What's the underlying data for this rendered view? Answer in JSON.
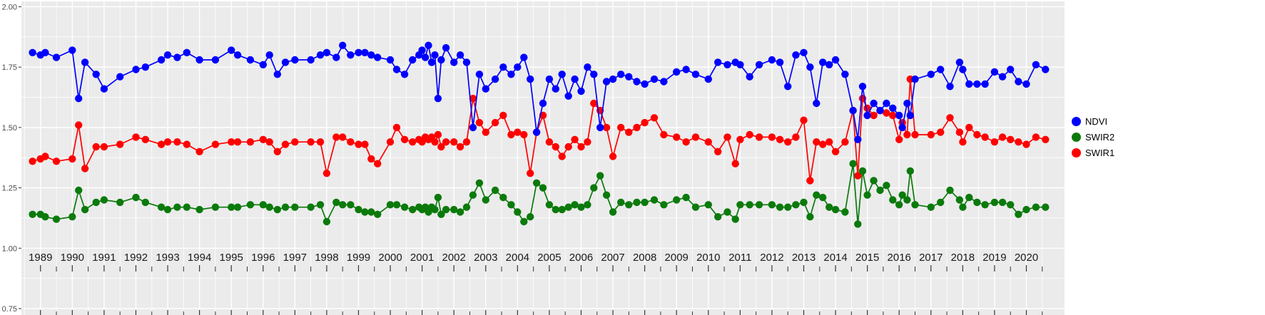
{
  "figure": {
    "background": "#FFFFFF",
    "panel_background": "#EBEBEB",
    "gridline_color": "#FFFFFF",
    "axis_text_color": "#4D4D4D",
    "x_axis_text_color": "#1A1A1A",
    "tick_color": "#333333"
  },
  "legend": {
    "items": [
      {
        "label": "NDVI",
        "color": "#0000FF"
      },
      {
        "label": "SWIR2",
        "color": "#0B7A0B"
      },
      {
        "label": "SWIR1",
        "color": "#FF0000"
      }
    ]
  },
  "chart_data": {
    "type": "line",
    "title": "",
    "xlabel": "",
    "ylabel": "",
    "grid": true,
    "legend_position": "right",
    "xlim": [
      1988.4,
      2021.2
    ],
    "ylim": [
      0.7234,
      2.022
    ],
    "y_tick_labels": [
      "2.00",
      "1.75",
      "1.50",
      "1.25",
      "1.00",
      "0.75"
    ],
    "y_tick_values": [
      2.0,
      1.75,
      1.5,
      1.25,
      1.0,
      0.75
    ],
    "x_tick_labels": [
      "1989",
      "1990",
      "1991",
      "1992",
      "1993",
      "1994",
      "1995",
      "1996",
      "1997",
      "1998",
      "1999",
      "2000",
      "2001",
      "2002",
      "2003",
      "2004",
      "2005",
      "2006",
      "2007",
      "2008",
      "2009",
      "2010",
      "2011",
      "2012",
      "2013",
      "2014",
      "2015",
      "2016",
      "2017",
      "2018",
      "2019",
      "2020"
    ],
    "x_tick_values": [
      1989,
      1990,
      1991,
      1992,
      1993,
      1994,
      1995,
      1996,
      1997,
      1998,
      1999,
      2000,
      2001,
      2002,
      2003,
      2004,
      2005,
      2006,
      2007,
      2008,
      2009,
      2010,
      2011,
      2012,
      2013,
      2014,
      2015,
      2016,
      2017,
      2018,
      2019,
      2020
    ],
    "x": [
      1988.75,
      1989.0,
      1989.15,
      1989.5,
      1990.0,
      1990.2,
      1990.4,
      1990.75,
      1991.0,
      1991.5,
      1992.0,
      1992.3,
      1992.8,
      1993.0,
      1993.3,
      1993.6,
      1994.0,
      1994.5,
      1995.0,
      1995.2,
      1995.6,
      1996.0,
      1996.2,
      1996.45,
      1996.7,
      1997.0,
      1997.5,
      1997.8,
      1998.0,
      1998.3,
      1998.5,
      1998.75,
      1999.0,
      1999.2,
      1999.4,
      1999.6,
      2000.0,
      2000.2,
      2000.45,
      2000.7,
      2000.9,
      2001.0,
      2001.1,
      2001.2,
      2001.3,
      2001.4,
      2001.5,
      2001.6,
      2001.75,
      2002.0,
      2002.2,
      2002.4,
      2002.6,
      2002.8,
      2003.0,
      2003.3,
      2003.55,
      2003.8,
      2004.0,
      2004.2,
      2004.4,
      2004.6,
      2004.8,
      2005.0,
      2005.2,
      2005.4,
      2005.6,
      2005.8,
      2006.0,
      2006.2,
      2006.4,
      2006.6,
      2006.8,
      2007.0,
      2007.25,
      2007.5,
      2007.75,
      2008.0,
      2008.3,
      2008.6,
      2009.0,
      2009.3,
      2009.6,
      2010.0,
      2010.3,
      2010.6,
      2010.85,
      2011.0,
      2011.3,
      2011.6,
      2012.0,
      2012.25,
      2012.5,
      2012.75,
      2013.0,
      2013.2,
      2013.4,
      2013.6,
      2013.8,
      2014.0,
      2014.3,
      2014.55,
      2014.7,
      2014.85,
      2015.0,
      2015.2,
      2015.4,
      2015.6,
      2015.8,
      2016.0,
      2016.1,
      2016.25,
      2016.35,
      2016.5,
      2017.0,
      2017.3,
      2017.6,
      2017.9,
      2018.0,
      2018.2,
      2018.45,
      2018.7,
      2019.0,
      2019.25,
      2019.5,
      2019.75,
      2020.0,
      2020.3,
      2020.6
    ],
    "series": [
      {
        "name": "NDVI",
        "color": "#0000FF",
        "values": [
          1.81,
          1.8,
          1.81,
          1.79,
          1.82,
          1.62,
          1.77,
          1.72,
          1.66,
          1.71,
          1.74,
          1.75,
          1.78,
          1.8,
          1.79,
          1.81,
          1.78,
          1.78,
          1.82,
          1.8,
          1.78,
          1.76,
          1.8,
          1.72,
          1.77,
          1.78,
          1.78,
          1.8,
          1.81,
          1.79,
          1.84,
          1.8,
          1.81,
          1.81,
          1.8,
          1.79,
          1.78,
          1.74,
          1.72,
          1.78,
          1.8,
          1.82,
          1.79,
          1.84,
          1.77,
          1.8,
          1.62,
          1.78,
          1.83,
          1.77,
          1.8,
          1.77,
          1.5,
          1.72,
          1.66,
          1.7,
          1.75,
          1.72,
          1.75,
          1.79,
          1.7,
          1.48,
          1.6,
          1.7,
          1.66,
          1.72,
          1.63,
          1.7,
          1.65,
          1.75,
          1.72,
          1.5,
          1.69,
          1.7,
          1.72,
          1.71,
          1.69,
          1.68,
          1.7,
          1.69,
          1.73,
          1.74,
          1.72,
          1.7,
          1.77,
          1.76,
          1.77,
          1.76,
          1.71,
          1.76,
          1.78,
          1.77,
          1.67,
          1.8,
          1.81,
          1.75,
          1.6,
          1.77,
          1.76,
          1.78,
          1.72,
          1.57,
          1.45,
          1.67,
          1.55,
          1.6,
          1.57,
          1.6,
          1.58,
          1.55,
          1.5,
          1.6,
          1.55,
          1.7,
          1.72,
          1.74,
          1.67,
          1.77,
          1.74,
          1.68,
          1.68,
          1.68,
          1.73,
          1.71,
          1.74,
          1.69,
          1.68,
          1.76,
          1.74
        ]
      },
      {
        "name": "SWIR2",
        "color": "#0B7A0B",
        "values": [
          1.14,
          1.14,
          1.13,
          1.12,
          1.13,
          1.24,
          1.16,
          1.19,
          1.2,
          1.19,
          1.21,
          1.19,
          1.17,
          1.16,
          1.17,
          1.17,
          1.16,
          1.17,
          1.17,
          1.17,
          1.18,
          1.18,
          1.17,
          1.16,
          1.17,
          1.17,
          1.17,
          1.18,
          1.11,
          1.19,
          1.18,
          1.18,
          1.16,
          1.15,
          1.15,
          1.14,
          1.18,
          1.18,
          1.17,
          1.16,
          1.17,
          1.16,
          1.17,
          1.15,
          1.17,
          1.16,
          1.21,
          1.14,
          1.16,
          1.16,
          1.15,
          1.17,
          1.22,
          1.27,
          1.2,
          1.24,
          1.21,
          1.18,
          1.15,
          1.11,
          1.13,
          1.27,
          1.25,
          1.18,
          1.16,
          1.16,
          1.17,
          1.18,
          1.17,
          1.18,
          1.25,
          1.3,
          1.22,
          1.15,
          1.19,
          1.18,
          1.19,
          1.19,
          1.2,
          1.18,
          1.2,
          1.21,
          1.17,
          1.18,
          1.13,
          1.15,
          1.12,
          1.18,
          1.18,
          1.18,
          1.18,
          1.17,
          1.17,
          1.18,
          1.19,
          1.13,
          1.22,
          1.21,
          1.17,
          1.16,
          1.15,
          1.35,
          1.1,
          1.32,
          1.22,
          1.28,
          1.24,
          1.26,
          1.2,
          1.18,
          1.22,
          1.2,
          1.32,
          1.18,
          1.17,
          1.19,
          1.24,
          1.2,
          1.17,
          1.21,
          1.19,
          1.18,
          1.19,
          1.19,
          1.18,
          1.14,
          1.16,
          1.17,
          1.17
        ]
      },
      {
        "name": "SWIR1",
        "color": "#FF0000",
        "values": [
          1.36,
          1.37,
          1.38,
          1.36,
          1.37,
          1.51,
          1.33,
          1.42,
          1.42,
          1.43,
          1.46,
          1.45,
          1.43,
          1.44,
          1.44,
          1.43,
          1.4,
          1.43,
          1.44,
          1.44,
          1.44,
          1.45,
          1.44,
          1.4,
          1.43,
          1.44,
          1.44,
          1.44,
          1.31,
          1.46,
          1.46,
          1.44,
          1.43,
          1.43,
          1.37,
          1.35,
          1.44,
          1.5,
          1.45,
          1.44,
          1.45,
          1.44,
          1.46,
          1.45,
          1.46,
          1.44,
          1.47,
          1.42,
          1.44,
          1.44,
          1.42,
          1.44,
          1.62,
          1.52,
          1.48,
          1.52,
          1.55,
          1.47,
          1.48,
          1.47,
          1.31,
          1.48,
          1.55,
          1.44,
          1.42,
          1.38,
          1.42,
          1.45,
          1.42,
          1.44,
          1.6,
          1.57,
          1.5,
          1.38,
          1.5,
          1.48,
          1.5,
          1.52,
          1.54,
          1.47,
          1.46,
          1.44,
          1.46,
          1.44,
          1.4,
          1.46,
          1.35,
          1.45,
          1.47,
          1.46,
          1.46,
          1.45,
          1.44,
          1.46,
          1.53,
          1.28,
          1.44,
          1.43,
          1.44,
          1.4,
          1.44,
          1.57,
          1.3,
          1.62,
          1.58,
          1.55,
          1.57,
          1.56,
          1.55,
          1.45,
          1.52,
          1.47,
          1.7,
          1.47,
          1.47,
          1.48,
          1.54,
          1.48,
          1.44,
          1.5,
          1.47,
          1.46,
          1.44,
          1.46,
          1.45,
          1.44,
          1.43,
          1.46,
          1.45
        ]
      }
    ]
  }
}
